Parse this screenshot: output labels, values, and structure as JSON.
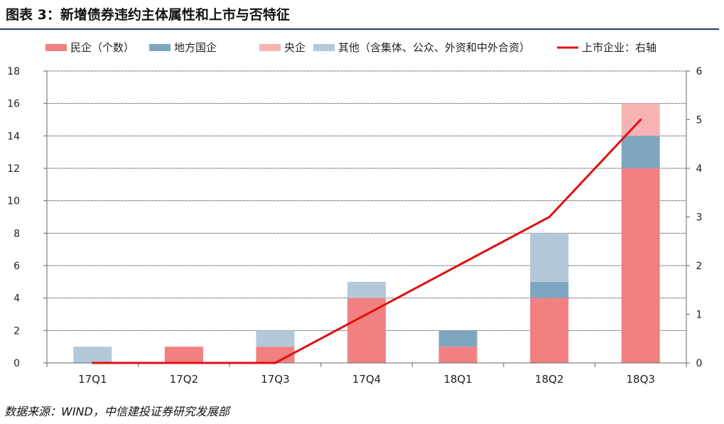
{
  "title": "图表 3：新增债券违约主体属性和上市与否特征",
  "source": "数据来源：WIND，中信建投证券研究发展部",
  "chart_data": {
    "type": "bar",
    "stacked": true,
    "categories": [
      "17Q1",
      "17Q2",
      "17Q3",
      "17Q4",
      "18Q1",
      "18Q2",
      "18Q3"
    ],
    "series": [
      {
        "name": "民企（个数）",
        "color": "#f28080",
        "axis": "left",
        "values": [
          0,
          1,
          1,
          4,
          1,
          4,
          12
        ]
      },
      {
        "name": "地方国企",
        "color": "#7fa6c0",
        "axis": "left",
        "values": [
          0,
          0,
          0,
          0,
          1,
          1,
          2
        ]
      },
      {
        "name": "央企",
        "color": "#f7b3b3",
        "axis": "left",
        "values": [
          0,
          0,
          0,
          0,
          0,
          0,
          2
        ]
      },
      {
        "name": "其他（含集体、公众、外资和中外合资）",
        "color": "#b3c8d8",
        "axis": "left",
        "values": [
          1,
          0,
          1,
          1,
          0,
          3,
          0
        ]
      }
    ],
    "line_series": {
      "name": "上市企业：右轴",
      "color": "#e01010",
      "axis": "right",
      "values": [
        0,
        0,
        0,
        1,
        2,
        3,
        5
      ]
    },
    "ylim_left": [
      0,
      18
    ],
    "yticks_left": [
      0,
      2,
      4,
      6,
      8,
      10,
      12,
      14,
      16,
      18
    ],
    "ylim_right": [
      0,
      6
    ],
    "yticks_right": [
      0,
      1,
      2,
      3,
      4,
      5,
      6
    ],
    "grid": true,
    "legend_position": "top"
  }
}
